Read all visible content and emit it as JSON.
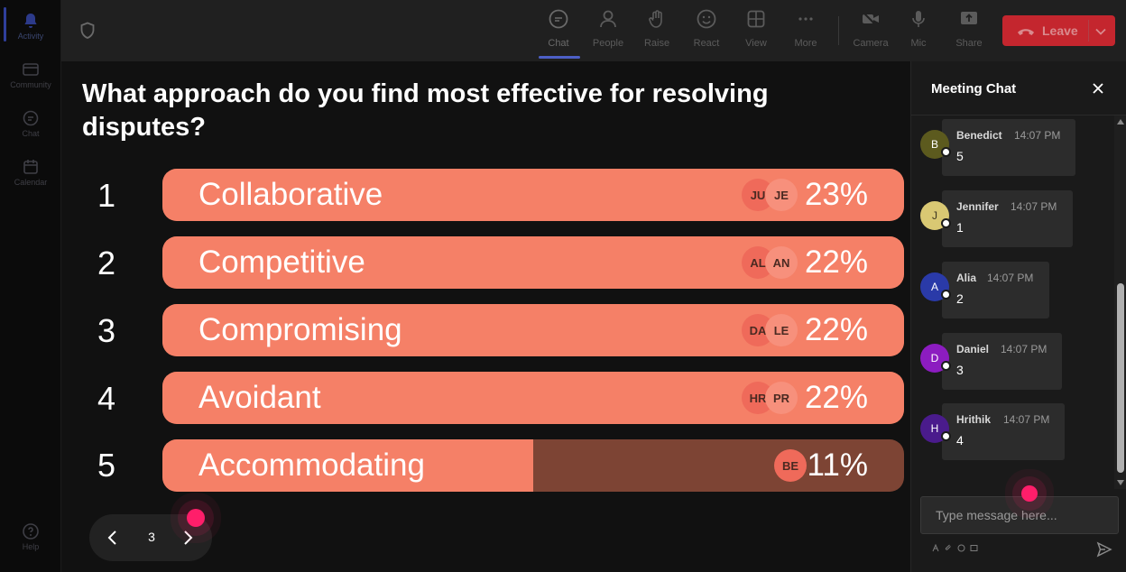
{
  "rail": {
    "items": [
      {
        "label": "Activity",
        "icon": "bell-icon"
      },
      {
        "label": "Community",
        "icon": "community-icon"
      },
      {
        "label": "Chat",
        "icon": "chat-icon"
      },
      {
        "label": "Calendar",
        "icon": "calendar-icon"
      },
      {
        "label": "Help",
        "icon": "help-icon"
      }
    ]
  },
  "toolbar": {
    "chat_label": "Chat",
    "people_label": "People",
    "raise_label": "Raise",
    "react_label": "React",
    "view_label": "View",
    "more_label": "More",
    "camera_label": "Camera",
    "mic_label": "Mic",
    "share_label": "Share",
    "leave_label": "Leave"
  },
  "poll": {
    "question": "What approach do you find most effective for resolving disputes?",
    "options": [
      {
        "num": "1",
        "label": "Collaborative",
        "percent": "23%",
        "fill": 1.0,
        "avatars": [
          "JU",
          "JE"
        ]
      },
      {
        "num": "2",
        "label": "Competitive",
        "percent": "22%",
        "fill": 1.0,
        "avatars": [
          "AL",
          "AN"
        ]
      },
      {
        "num": "3",
        "label": "Compromising",
        "percent": "22%",
        "fill": 1.0,
        "avatars": [
          "DA",
          "LE"
        ]
      },
      {
        "num": "4",
        "label": "Avoidant",
        "percent": "22%",
        "fill": 1.0,
        "avatars": [
          "HR",
          "PR"
        ]
      },
      {
        "num": "5",
        "label": "Accommodating",
        "percent": "11%",
        "fill": 0.5,
        "avatars": [
          "BE"
        ]
      }
    ],
    "page": "3"
  },
  "chat": {
    "title": "Meeting Chat",
    "messages": [
      {
        "initial": "B",
        "name": "Benedict",
        "time": "14:07 PM",
        "text": "5",
        "color": "#5c5a1e"
      },
      {
        "initial": "J",
        "name": "Jennifer",
        "time": "14:07 PM",
        "text": "1",
        "color": "#d9c873"
      },
      {
        "initial": "A",
        "name": "Alia",
        "time": "14:07 PM",
        "text": "2",
        "color": "#2a3aa8"
      },
      {
        "initial": "D",
        "name": "Daniel",
        "time": "14:07 PM",
        "text": "3",
        "color": "#8c1cc0"
      },
      {
        "initial": "H",
        "name": "Hrithik",
        "time": "14:07 PM",
        "text": "4",
        "color": "#4a1b8c"
      }
    ],
    "input_placeholder": "Type message here..."
  },
  "colors": {
    "bar_fill": "#f58067",
    "bar_track": "#7d4434",
    "leave": "#c4262e",
    "cursor": "#ff1e6a"
  }
}
